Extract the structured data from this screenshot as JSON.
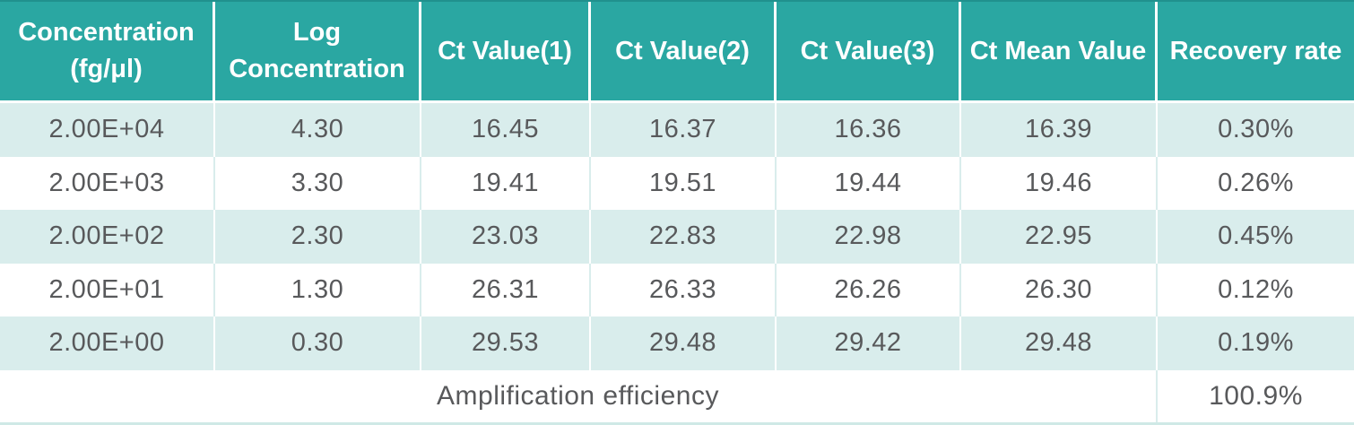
{
  "chart_data": {
    "type": "table",
    "columns": [
      "Concentration (fg/μl)",
      "Log Concentration",
      "Ct Value(1)",
      "Ct Value(2)",
      "Ct Value(3)",
      "Ct Mean Value",
      "Recovery rate"
    ],
    "rows": [
      [
        "2.00E+04",
        "4.30",
        "16.45",
        "16.37",
        "16.36",
        "16.39",
        "0.30%"
      ],
      [
        "2.00E+03",
        "3.30",
        "19.41",
        "19.51",
        "19.44",
        "19.46",
        "0.26%"
      ],
      [
        "2.00E+02",
        "2.30",
        "23.03",
        "22.83",
        "22.98",
        "22.95",
        "0.45%"
      ],
      [
        "2.00E+01",
        "1.30",
        "26.31",
        "26.33",
        "26.26",
        "26.30",
        "0.12%"
      ],
      [
        "2.00E+00",
        "0.30",
        "29.53",
        "29.48",
        "29.42",
        "29.48",
        "0.19%"
      ]
    ],
    "footer": {
      "label": "Amplification efficiency",
      "value": "100.9%"
    }
  },
  "header_cells": [
    [
      "Concentration",
      "(fg/μl)"
    ],
    [
      "Log",
      "Concentration"
    ],
    [
      "Ct Value(1)"
    ],
    [
      "Ct Value(2)"
    ],
    [
      "Ct Value(3)"
    ],
    [
      "Ct Mean Value"
    ],
    [
      "Recovery rate"
    ]
  ],
  "colors": {
    "header_bg": "#2aa7a2",
    "header_text": "#ffffff",
    "row_alt_bg": "#d9edec",
    "row_plain_bg": "#ffffff",
    "body_text": "#58595b",
    "grid_on_alt_rows": "#ffffff",
    "grid_on_plain_rows": "#d9edec",
    "table_top_border": "#20918d",
    "table_bottom_border": "#cfe9e6"
  }
}
